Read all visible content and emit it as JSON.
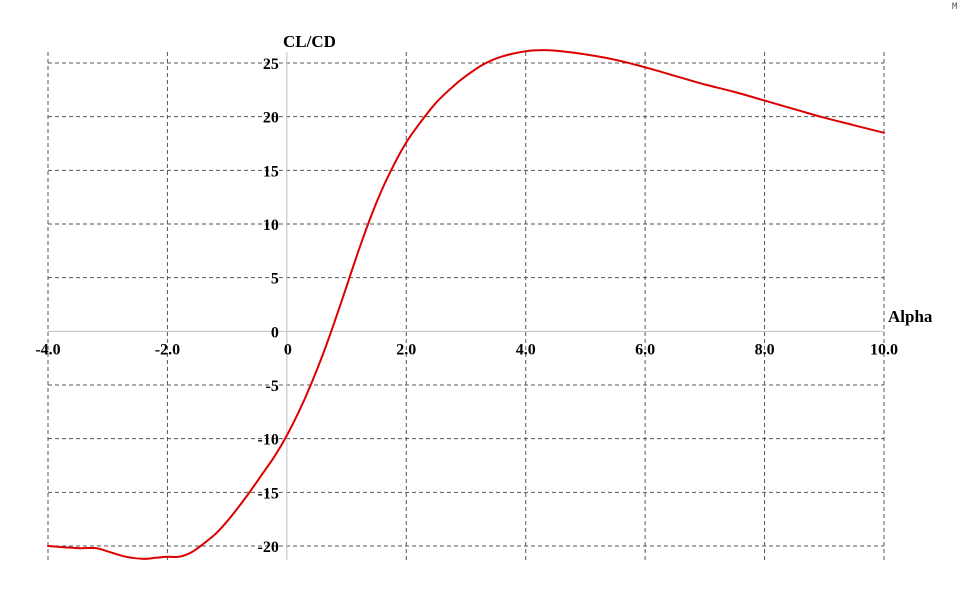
{
  "corner_mark": "M",
  "chart_data": {
    "type": "line",
    "title": "",
    "xlabel": "Alpha",
    "ylabel": "CL/CD",
    "xlim": [
      -4,
      10
    ],
    "ylim": [
      -20,
      25
    ],
    "x_ticks": [
      -4,
      -2,
      0,
      2,
      4,
      6,
      8,
      10
    ],
    "x_tick_labels": [
      "-4.0",
      "-2.0",
      "0",
      "2.0",
      "4.0",
      "6.0",
      "8.0",
      "10.0"
    ],
    "y_ticks": [
      25,
      20,
      15,
      10,
      5,
      0,
      -5,
      -10,
      -15,
      -20
    ],
    "y_tick_labels": [
      "25",
      "20",
      "15",
      "10",
      "5",
      "0",
      "-5",
      "-10",
      "-15",
      "-20"
    ],
    "grid": true,
    "colors": {
      "line": "#dd0000",
      "grid": "#555555",
      "axis": "#c0c0c0"
    },
    "series": [
      {
        "x": [
          -4.0,
          -3.5,
          -3.2,
          -3.0,
          -2.7,
          -2.4,
          -2.2,
          -2.0,
          -1.8,
          -1.6,
          -1.4,
          -1.2,
          -1.0,
          -0.8,
          -0.6,
          -0.4,
          -0.2,
          0.0,
          0.2,
          0.4,
          0.6,
          0.8,
          1.0,
          1.2,
          1.4,
          1.6,
          1.8,
          2.0,
          2.2,
          2.5,
          2.8,
          3.0,
          3.3,
          3.6,
          4.0,
          4.3,
          4.6,
          5.0,
          5.5,
          6.0,
          6.5,
          7.0,
          7.5,
          8.0,
          8.5,
          9.0,
          9.5,
          10.0
        ],
        "y": [
          -20.0,
          -20.2,
          -20.2,
          -20.5,
          -21.0,
          -21.2,
          -21.1,
          -21.0,
          -21.0,
          -20.6,
          -19.8,
          -18.9,
          -17.7,
          -16.3,
          -14.8,
          -13.2,
          -11.6,
          -9.7,
          -7.5,
          -5.0,
          -2.2,
          0.9,
          4.2,
          7.5,
          10.6,
          13.3,
          15.6,
          17.6,
          19.2,
          21.3,
          22.9,
          23.8,
          24.9,
          25.6,
          26.1,
          26.2,
          26.1,
          25.8,
          25.3,
          24.6,
          23.8,
          23.0,
          22.3,
          21.5,
          20.7,
          19.9,
          19.2,
          18.5
        ]
      }
    ]
  }
}
